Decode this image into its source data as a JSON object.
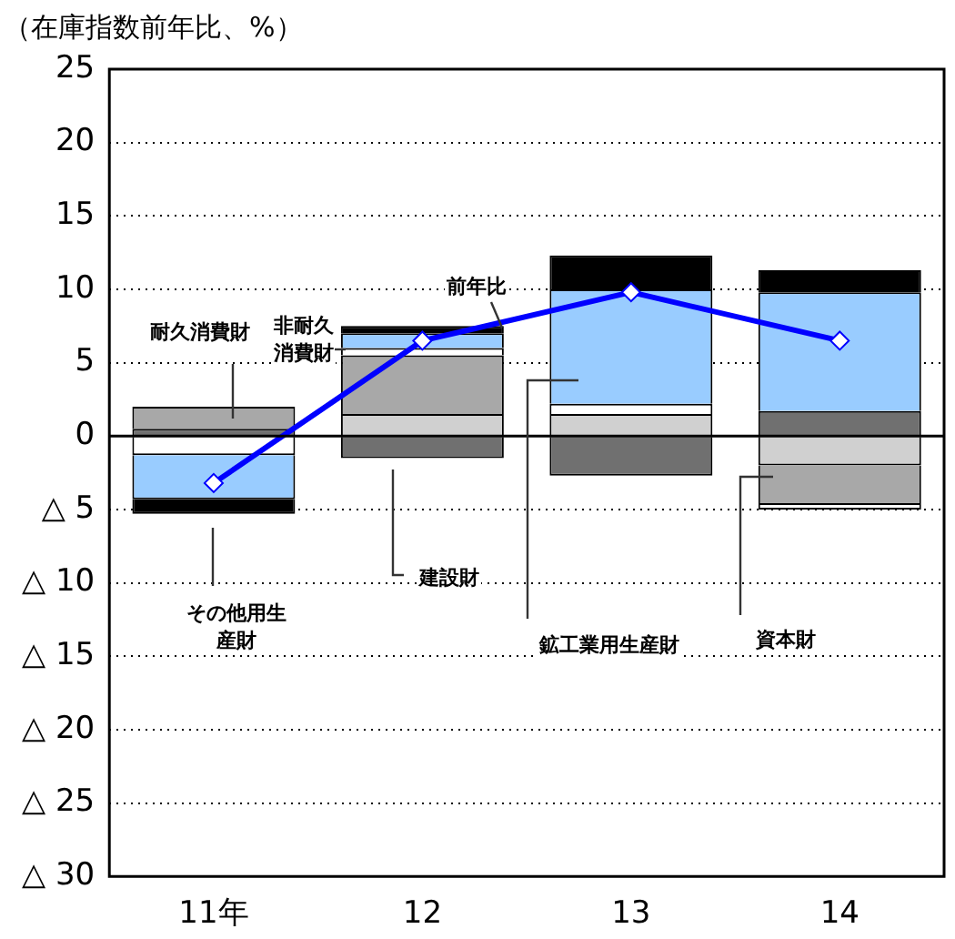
{
  "chart_data": {
    "type": "bar",
    "ylabel": "（在庫指数前年比、%）",
    "categories": [
      "11年",
      "12",
      "13",
      "14"
    ],
    "stacked": true,
    "grid": "y",
    "ylim": [
      -30,
      25
    ],
    "yticks": [
      {
        "value": -30,
        "label": "△ 30"
      },
      {
        "value": -25,
        "label": "△ 25"
      },
      {
        "value": -20,
        "label": "△ 20"
      },
      {
        "value": -15,
        "label": "△ 15"
      },
      {
        "value": -10,
        "label": "△ 10"
      },
      {
        "value": -5,
        "label": "△ 5"
      },
      0,
      5,
      10,
      15,
      20,
      25
    ],
    "ref_lines": [
      {
        "axis": "y",
        "value": 0
      }
    ],
    "series": [
      {
        "name": "建設財",
        "color": "#707070",
        "values": [
          0.5,
          -1.5,
          -2.7,
          1.7
        ]
      },
      {
        "name": "資本財",
        "color": "#d0d0d0",
        "values": [
          0,
          1.5,
          1.5,
          -2
        ]
      },
      {
        "name": "耐久消費財",
        "color": "#a8a8a8",
        "values": [
          1.5,
          4,
          0,
          -2.7
        ]
      },
      {
        "name": "非耐久消費財",
        "color": "#ffffff",
        "values": [
          -1.3,
          0.5,
          0.7,
          -0.3
        ]
      },
      {
        "name": "鉱工業用生産財",
        "color": "#99ccff",
        "values": [
          -3,
          1,
          7.8,
          8.1
        ]
      },
      {
        "name": "その他用生産財",
        "color": "#000000",
        "values": [
          -1,
          0.5,
          2.3,
          1.5
        ]
      },
      {
        "name": "前年比",
        "type": "line",
        "color": "#0000ff",
        "marker": "diamond",
        "values": [
          -3.2,
          6.5,
          9.8,
          6.5
        ]
      }
    ]
  }
}
